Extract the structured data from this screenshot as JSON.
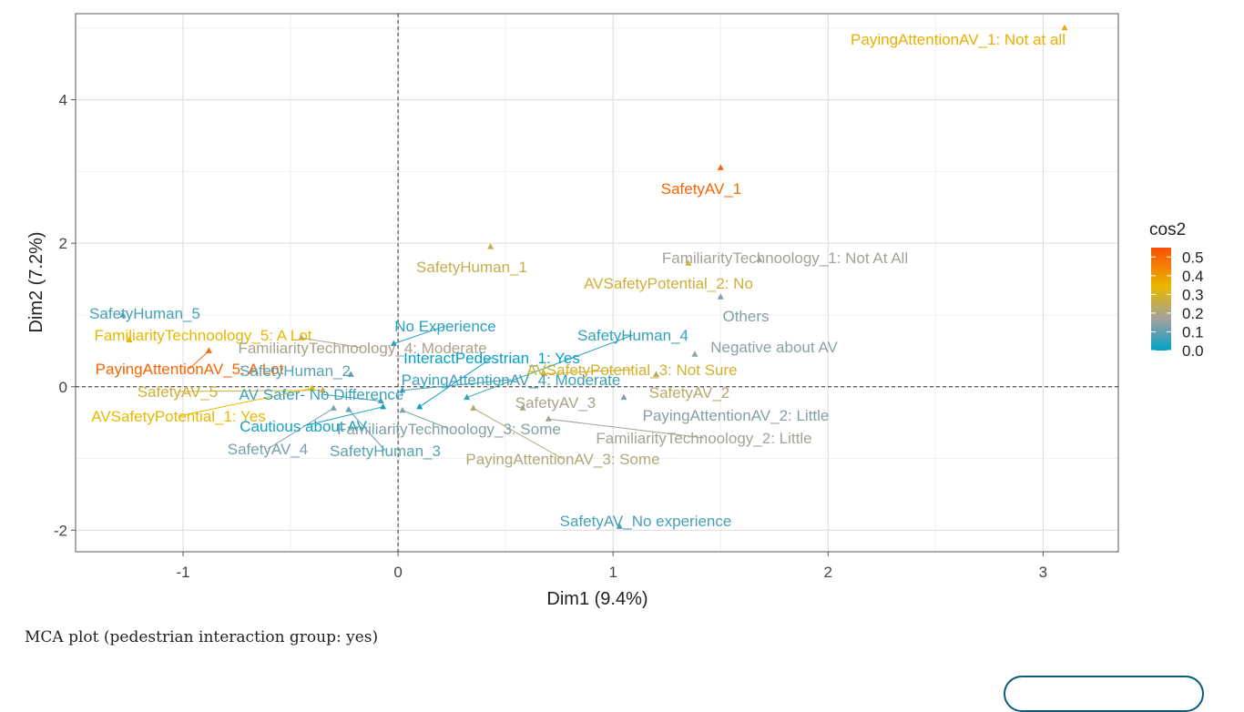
{
  "caption": "MCA plot (pedestrian interaction group: yes)",
  "chart_data": {
    "type": "scatter",
    "xlabel": "Dim1 (9.4%)",
    "ylabel": "Dim2 (7.2%)",
    "xlim": [
      -1.5,
      3.35
    ],
    "ylim": [
      -2.3,
      5.2
    ],
    "x_ticks": [
      -1,
      0,
      1,
      2,
      3
    ],
    "y_ticks": [
      -2,
      0,
      2,
      4
    ],
    "x_tick_labels": [
      "-1",
      "0",
      "1",
      "2",
      "3"
    ],
    "y_tick_labels": [
      "-2",
      "0",
      "2",
      "4"
    ],
    "grid": true,
    "reference_lines": {
      "x": 0,
      "y": 0,
      "style": "dashed"
    },
    "color_scale": {
      "title": "cos2",
      "colors": [
        "#00a2c6",
        "#a0a0a0",
        "#e7b800",
        "#fc4e07"
      ],
      "ticks": [
        "0.5",
        "0.4",
        "0.3",
        "0.2",
        "0.1",
        "0.0"
      ],
      "legend_position": "right"
    },
    "points": [
      {
        "label": "PayingAttentionAV_1: Not at all",
        "x": 3.1,
        "y": 5.0,
        "cos2": 0.35
      },
      {
        "label": "SafetyAV_1",
        "x": 1.5,
        "y": 3.05,
        "cos2": 0.5
      },
      {
        "label": "SafetyHuman_1",
        "x": 0.43,
        "y": 1.95,
        "cos2": 0.25
      },
      {
        "label": "FamiliarityTechnoology_1: Not At All",
        "x": 1.68,
        "y": 1.77,
        "cos2": 0.17
      },
      {
        "label": "AVSafetyPotential_2: No",
        "x": 1.35,
        "y": 1.72,
        "cos2": 0.27
      },
      {
        "label": "Others",
        "x": 1.5,
        "y": 1.25,
        "cos2": 0.13
      },
      {
        "label": "SafetyHuman_5",
        "x": -1.28,
        "y": 1.0,
        "cos2": 0.07
      },
      {
        "label": "FamiliarityTechnoology_5: A Lot",
        "x": -1.25,
        "y": 0.65,
        "cos2": 0.33
      },
      {
        "label": "FamiliarityTechnoology_4: Moderate",
        "x": -0.45,
        "y": 0.68,
        "cos2": 0.18
      },
      {
        "label": "No Experience",
        "x": -0.02,
        "y": 0.6,
        "cos2": 0.04
      },
      {
        "label": "SafetyHuman_4",
        "x": 0.32,
        "y": -0.15,
        "cos2": 0.05
      },
      {
        "label": "Negative about AV",
        "x": 1.38,
        "y": 0.45,
        "cos2": 0.14
      },
      {
        "label": "InteractPedestrian_1: Yes",
        "x": 0.1,
        "y": -0.28,
        "cos2": 0.0
      },
      {
        "label": "PayingAttentionAV_5: A Lot",
        "x": -0.88,
        "y": 0.5,
        "cos2": 0.5
      },
      {
        "label": "SafetyHuman_2",
        "x": -0.22,
        "y": 0.17,
        "cos2": 0.09
      },
      {
        "label": "PayingAttentionAV_4: Moderate",
        "x": 0.02,
        "y": -0.05,
        "cos2": 0.06
      },
      {
        "label": "AVSafetyPotential_3: Not Sure",
        "x": 0.68,
        "y": 0.18,
        "cos2": 0.28
      },
      {
        "label": "SafetyAV_5",
        "x": -0.35,
        "y": -0.05,
        "cos2": 0.27
      },
      {
        "label": "AV Safer- No Difference",
        "x": -0.08,
        "y": -0.2,
        "cos2": 0.06
      },
      {
        "label": "SafetyAV_3",
        "x": 0.58,
        "y": -0.3,
        "cos2": 0.18
      },
      {
        "label": "SafetyAV_2",
        "x": 1.2,
        "y": 0.17,
        "cos2": 0.22
      },
      {
        "label": "AVSafetyPotential_1: Yes",
        "x": -0.4,
        "y": -0.02,
        "cos2": 0.33
      },
      {
        "label": "PayingAttentionAV_2: Little",
        "x": 1.05,
        "y": -0.15,
        "cos2": 0.13
      },
      {
        "label": "Cautious about AV",
        "x": -0.07,
        "y": -0.28,
        "cos2": 0.02
      },
      {
        "label": "FamiliarityTechnoology_3: Some",
        "x": 0.02,
        "y": -0.33,
        "cos2": 0.13
      },
      {
        "label": "FamiliarityTechnoology_2: Little",
        "x": 0.7,
        "y": -0.45,
        "cos2": 0.17
      },
      {
        "label": "SafetyAV_4",
        "x": -0.3,
        "y": -0.3,
        "cos2": 0.12
      },
      {
        "label": "SafetyHuman_3",
        "x": -0.23,
        "y": -0.32,
        "cos2": 0.09
      },
      {
        "label": "PayingAttentionAV_3: Some",
        "x": 0.35,
        "y": -0.3,
        "cos2": 0.2
      },
      {
        "label": "SafetyAV_No experience",
        "x": 1.03,
        "y": -1.95,
        "cos2": 0.07
      }
    ]
  }
}
